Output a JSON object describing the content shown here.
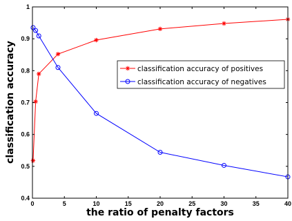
{
  "chart_data": {
    "type": "line",
    "xlabel": "the ratio of penalty factors",
    "ylabel": "classification accuracy",
    "xlim": [
      0,
      40
    ],
    "ylim": [
      0.4,
      1
    ],
    "xticks": [
      0,
      5,
      10,
      15,
      20,
      25,
      30,
      35,
      40
    ],
    "yticks": [
      0.4,
      0.5,
      0.6,
      0.7,
      0.8,
      0.9,
      1
    ],
    "xtick_labels": [
      "0",
      "5",
      "10",
      "15",
      "20",
      "25",
      "30",
      "35",
      "40"
    ],
    "ytick_labels": [
      "0.4",
      "0.5",
      "0.6",
      "0.7",
      "0.8",
      "0.9",
      "1"
    ],
    "grid": false,
    "legend_position": "center-right",
    "series": [
      {
        "name": "classification accuracy of positives",
        "color": "#ff0000",
        "marker": "star",
        "x": [
          0.1,
          0.5,
          1,
          4,
          10,
          20,
          30,
          40
        ],
        "y": [
          0.518,
          0.703,
          0.79,
          0.852,
          0.896,
          0.931,
          0.948,
          0.961
        ]
      },
      {
        "name": "classification accuracy of negatives",
        "color": "#0000ff",
        "marker": "circle",
        "x": [
          0.1,
          0.5,
          1,
          4,
          10,
          20,
          30,
          40
        ],
        "y": [
          0.935,
          0.926,
          0.909,
          0.81,
          0.666,
          0.544,
          0.503,
          0.467
        ]
      }
    ]
  }
}
